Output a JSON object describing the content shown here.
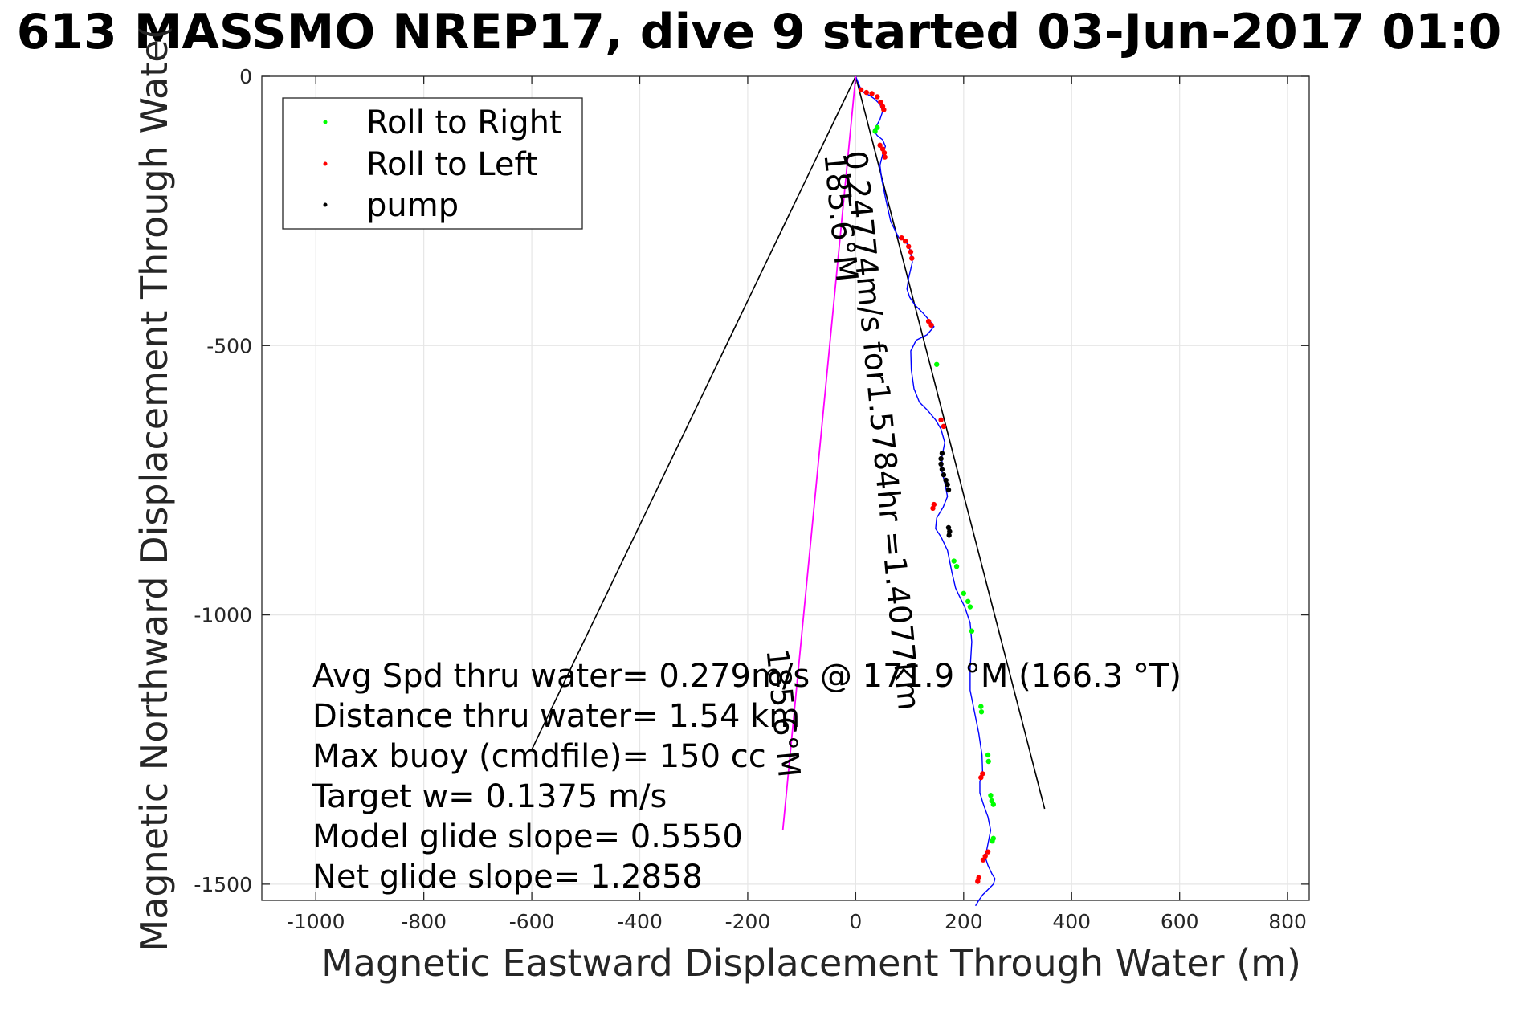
{
  "chart_data": {
    "type": "line",
    "title": "613 MASSMO NREP17, dive 9 started 03-Jun-2017 01:0",
    "xlabel": "Magnetic Eastward Displacement Through Water (m)",
    "ylabel": "Magnetic Northward Displacement Through Wate(",
    "xlim": [
      -1100,
      840
    ],
    "ylim": [
      -1530,
      0
    ],
    "xticks": [
      -1000,
      -800,
      -600,
      -400,
      -200,
      0,
      200,
      400,
      600,
      800
    ],
    "xtick_labels": [
      "-1000",
      "-800",
      "-600",
      "-400",
      "-200",
      "0",
      "200",
      "400",
      "600",
      "800"
    ],
    "yticks": [
      0,
      -500,
      -1000,
      -1500
    ],
    "ytick_labels": [
      "0",
      "-500",
      "-1000",
      "-1500"
    ],
    "grid": true,
    "legend_position": "top-left",
    "legend": [
      {
        "label": "Roll to Right",
        "color": "#00ff00"
      },
      {
        "label": "Roll to Left",
        "color": "#ff0000"
      },
      {
        "label": "pump",
        "color": "#000000"
      }
    ],
    "series": [
      {
        "type": "line",
        "color": "#0000ff",
        "x": [
          0,
          8,
          15,
          25,
          35,
          45,
          50,
          45,
          38,
          33,
          40,
          50,
          55,
          50,
          45,
          48,
          55,
          65,
          80,
          92,
          100,
          105,
          98,
          95,
          100,
          110,
          125,
          138,
          145,
          132,
          112,
          102,
          103,
          108,
          118,
          133,
          148,
          158,
          165,
          160,
          160,
          165,
          170,
          162,
          150,
          148,
          158,
          170,
          178,
          185,
          192,
          202,
          212,
          215,
          212,
          212,
          220,
          228,
          234,
          235,
          230,
          230,
          236,
          245,
          250,
          245,
          240,
          245,
          252,
          258,
          255,
          245,
          235,
          228,
          222
        ],
        "y": [
          0,
          -20,
          -30,
          -35,
          -42,
          -52,
          -65,
          -80,
          -93,
          -100,
          -110,
          -118,
          -130,
          -145,
          -165,
          -190,
          -225,
          -270,
          -300,
          -305,
          -320,
          -345,
          -375,
          -395,
          -410,
          -425,
          -440,
          -455,
          -465,
          -480,
          -490,
          -510,
          -545,
          -580,
          -605,
          -620,
          -638,
          -655,
          -680,
          -705,
          -735,
          -755,
          -780,
          -800,
          -820,
          -840,
          -855,
          -880,
          -920,
          -950,
          -965,
          -985,
          -1015,
          -1050,
          -1100,
          -1140,
          -1180,
          -1220,
          -1260,
          -1290,
          -1310,
          -1330,
          -1350,
          -1375,
          -1400,
          -1425,
          -1450,
          -1465,
          -1480,
          -1490,
          -1500,
          -1510,
          -1520,
          -1530,
          -1540
        ]
      },
      {
        "type": "line",
        "color": "#ff00ff",
        "x": [
          0,
          -135
        ],
        "y": [
          0,
          -1400
        ]
      }
    ],
    "markers": {
      "roll_right": [
        {
          "x": 40,
          "y": -95
        },
        {
          "x": 36,
          "y": -102
        },
        {
          "x": 150,
          "y": -535
        },
        {
          "x": 182,
          "y": -900
        },
        {
          "x": 187,
          "y": -910
        },
        {
          "x": 200,
          "y": -960
        },
        {
          "x": 208,
          "y": -975
        },
        {
          "x": 212,
          "y": -985
        },
        {
          "x": 215,
          "y": -1030
        },
        {
          "x": 232,
          "y": -1170
        },
        {
          "x": 233,
          "y": -1180
        },
        {
          "x": 245,
          "y": -1260
        },
        {
          "x": 246,
          "y": -1272
        },
        {
          "x": 250,
          "y": -1335
        },
        {
          "x": 252,
          "y": -1345
        },
        {
          "x": 255,
          "y": -1352
        },
        {
          "x": 255,
          "y": -1415
        },
        {
          "x": 253,
          "y": -1420
        }
      ],
      "roll_left": [
        {
          "x": 10,
          "y": -25
        },
        {
          "x": 20,
          "y": -30
        },
        {
          "x": 30,
          "y": -32
        },
        {
          "x": 40,
          "y": -38
        },
        {
          "x": 46,
          "y": -48
        },
        {
          "x": 50,
          "y": -56
        },
        {
          "x": 52,
          "y": -62
        },
        {
          "x": 45,
          "y": -128
        },
        {
          "x": 50,
          "y": -135
        },
        {
          "x": 53,
          "y": -142
        },
        {
          "x": 54,
          "y": -150
        },
        {
          "x": 85,
          "y": -300
        },
        {
          "x": 92,
          "y": -306
        },
        {
          "x": 98,
          "y": -316
        },
        {
          "x": 102,
          "y": -326
        },
        {
          "x": 104,
          "y": -338
        },
        {
          "x": 135,
          "y": -455
        },
        {
          "x": 140,
          "y": -462
        },
        {
          "x": 158,
          "y": -638
        },
        {
          "x": 163,
          "y": -650
        },
        {
          "x": 145,
          "y": -795
        },
        {
          "x": 143,
          "y": -802
        },
        {
          "x": 235,
          "y": -1295
        },
        {
          "x": 232,
          "y": -1302
        },
        {
          "x": 245,
          "y": -1440
        },
        {
          "x": 240,
          "y": -1448
        },
        {
          "x": 236,
          "y": -1455
        },
        {
          "x": 228,
          "y": -1488
        },
        {
          "x": 226,
          "y": -1495
        }
      ],
      "pump": [
        {
          "x": 160,
          "y": -700
        },
        {
          "x": 158,
          "y": -710
        },
        {
          "x": 158,
          "y": -720
        },
        {
          "x": 160,
          "y": -730
        },
        {
          "x": 163,
          "y": -740
        },
        {
          "x": 167,
          "y": -750
        },
        {
          "x": 170,
          "y": -758
        },
        {
          "x": 172,
          "y": -768
        },
        {
          "x": 172,
          "y": -838
        },
        {
          "x": 174,
          "y": -845
        },
        {
          "x": 173,
          "y": -852
        }
      ]
    },
    "reference_lines": [
      {
        "color": "#000000",
        "x": [
          0,
          -600
        ],
        "y": [
          0,
          -1250
        ]
      },
      {
        "color": "#000000",
        "x": [
          0,
          350
        ],
        "y": [
          0,
          -1360
        ]
      }
    ],
    "rotated_labels": [
      {
        "text": "0.24774m/s for1.5784hr =1.4077km",
        "x": -20,
        "y": -140,
        "angle": 84.5
      },
      {
        "text": "185.6°M",
        "x": -58,
        "y": -145,
        "angle": 84.5
      },
      {
        "text": "185.6°M",
        "x": -165,
        "y": -1065,
        "angle": 84.5
      }
    ],
    "annotations": [
      "Avg Spd thru water=  0.279m/s @ 171.9 °M (166.3 °T)",
      "Distance thru water=  1.54 km",
      "Max buoy (cmdfile)= 150 cc",
      "Target w= 0.1375 m/s",
      "Model glide slope= 0.5550",
      "Net glide slope= 1.2858"
    ]
  }
}
